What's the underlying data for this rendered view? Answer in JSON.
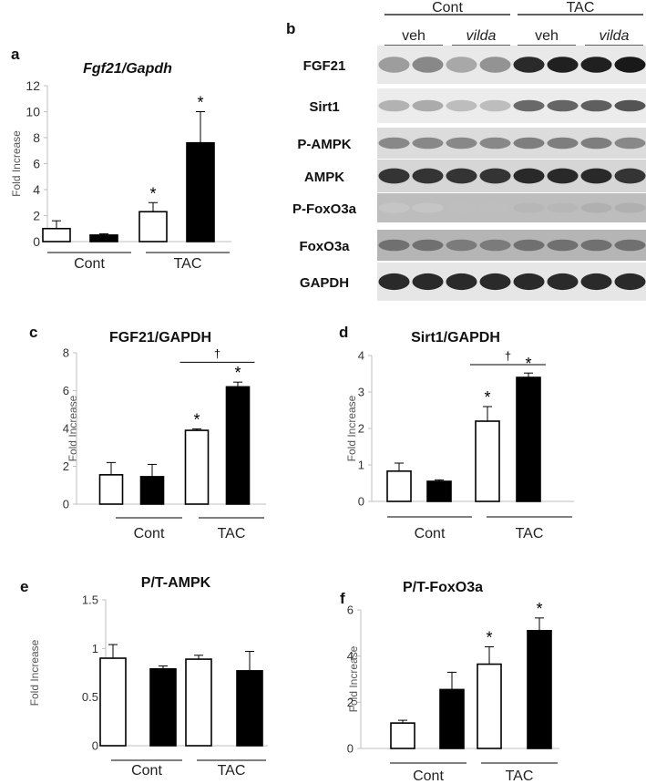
{
  "panels": {
    "a": {
      "letter": "a"
    },
    "b": {
      "letter": "b"
    },
    "c": {
      "letter": "c"
    },
    "d": {
      "letter": "d"
    },
    "e": {
      "letter": "e"
    },
    "f": {
      "letter": "f"
    }
  },
  "blot": {
    "groups": [
      "Cont",
      "TAC"
    ],
    "treatments": [
      "veh",
      "vilda",
      "veh",
      "vilda"
    ],
    "treatment_italic": [
      false,
      true,
      false,
      true
    ],
    "rows": [
      {
        "label": "FGF21",
        "intensities": [
          0.35,
          0.45,
          0.3,
          0.4,
          0.9,
          0.95,
          0.95,
          0.98
        ],
        "band_height": 1.25,
        "bg": "#e9e9e9"
      },
      {
        "label": "Sirt1",
        "intensities": [
          0.25,
          0.28,
          0.2,
          0.2,
          0.6,
          0.62,
          0.65,
          0.7
        ],
        "band_height": 0.9,
        "bg": "#ececec"
      },
      {
        "label": "P-AMPK",
        "intensities": [
          0.45,
          0.45,
          0.45,
          0.45,
          0.5,
          0.5,
          0.5,
          0.45
        ],
        "band_height": 0.9,
        "bg": "#dcdcdc"
      },
      {
        "label": "AMPK",
        "intensities": [
          0.85,
          0.85,
          0.85,
          0.85,
          0.9,
          0.9,
          0.9,
          0.85
        ],
        "band_height": 1.2,
        "bg": "#d6d6d6"
      },
      {
        "label": "P-FoxO3a",
        "intensities": [
          0.15,
          0.15,
          0.18,
          0.18,
          0.22,
          0.22,
          0.25,
          0.25
        ],
        "band_height": 0.8,
        "bg": "#bdbdbd"
      },
      {
        "label": "FoxO3a",
        "intensities": [
          0.55,
          0.55,
          0.5,
          0.5,
          0.55,
          0.55,
          0.55,
          0.55
        ],
        "band_height": 0.9,
        "bg": "#b5b5b5"
      },
      {
        "label": "GAPDH",
        "intensities": [
          0.9,
          0.9,
          0.9,
          0.9,
          0.9,
          0.9,
          0.9,
          0.9
        ],
        "band_height": 1.3,
        "bg": "#e6e6e6"
      }
    ]
  },
  "chart_data": [
    {
      "id": "a",
      "type": "bar",
      "title": "Fgf21/Gapdh",
      "title_style": "bold-italic",
      "ylabel": "Fold Increase",
      "ylim": [
        0,
        12
      ],
      "yticks": [
        0,
        2,
        4,
        6,
        8,
        10,
        12
      ],
      "groups": [
        "Cont",
        "TAC"
      ],
      "series": [
        {
          "fill": "#ffffff",
          "values": [
            1.0,
            2.3
          ],
          "errors": [
            0.6,
            0.7
          ]
        },
        {
          "fill": "#000000",
          "values": [
            0.5,
            7.6
          ],
          "errors": [
            0.1,
            2.4
          ]
        }
      ],
      "stars": [
        [
          false,
          true
        ],
        [
          false,
          true
        ]
      ],
      "dagger": null
    },
    {
      "id": "c",
      "type": "bar",
      "title": "FGF21/GAPDH",
      "title_style": "bold",
      "ylabel": "Fold Increase",
      "ylim": [
        0,
        8
      ],
      "yticks": [
        0,
        2,
        4,
        6,
        8
      ],
      "groups": [
        "Cont",
        "TAC"
      ],
      "series": [
        {
          "fill": "#ffffff",
          "values": [
            1.55,
            3.9
          ],
          "errors": [
            0.65,
            0.08
          ]
        },
        {
          "fill": "#000000",
          "values": [
            1.45,
            6.2
          ],
          "errors": [
            0.65,
            0.25
          ]
        }
      ],
      "stars": [
        [
          false,
          true
        ],
        [
          false,
          true
        ]
      ],
      "dagger": {
        "group": 1,
        "symbol": "†",
        "y": 7.5
      }
    },
    {
      "id": "d",
      "type": "bar",
      "title": "Sirt1/GAPDH",
      "title_style": "bold",
      "ylabel": "Fold Increase",
      "ylim": [
        0,
        4
      ],
      "yticks": [
        0,
        1,
        2,
        3,
        4
      ],
      "groups": [
        "Cont",
        "TAC"
      ],
      "series": [
        {
          "fill": "#ffffff",
          "values": [
            0.83,
            2.2
          ],
          "errors": [
            0.22,
            0.4
          ]
        },
        {
          "fill": "#000000",
          "values": [
            0.55,
            3.4
          ],
          "errors": [
            0.04,
            0.12
          ]
        }
      ],
      "stars": [
        [
          false,
          true
        ],
        [
          false,
          true
        ]
      ],
      "dagger": {
        "group": 1,
        "symbol": "†",
        "y": 3.75
      }
    },
    {
      "id": "e",
      "type": "bar",
      "title": "P/T-AMPK",
      "title_style": "bold",
      "ylabel": "Fold Increase",
      "ylim": [
        0,
        1.5
      ],
      "yticks": [
        0,
        0.5,
        1,
        1.5
      ],
      "groups": [
        "Cont",
        "TAC"
      ],
      "series": [
        {
          "fill": "#ffffff",
          "values": [
            0.9,
            0.89
          ],
          "errors": [
            0.14,
            0.04
          ]
        },
        {
          "fill": "#000000",
          "values": [
            0.79,
            0.77
          ],
          "errors": [
            0.03,
            0.2
          ]
        }
      ],
      "stars": [
        [
          false,
          false
        ],
        [
          false,
          false
        ]
      ],
      "dagger": null
    },
    {
      "id": "f",
      "type": "bar",
      "title": "P/T-FoxO3a",
      "title_style": "bold",
      "ylabel": "Fold Increase",
      "ylim": [
        0,
        6
      ],
      "yticks": [
        0,
        2,
        4,
        6
      ],
      "groups": [
        "Cont",
        "TAC"
      ],
      "series": [
        {
          "fill": "#ffffff",
          "values": [
            1.1,
            3.65
          ],
          "errors": [
            0.12,
            0.75
          ]
        },
        {
          "fill": "#000000",
          "values": [
            2.55,
            5.1
          ],
          "errors": [
            0.75,
            0.55
          ]
        }
      ],
      "stars": [
        [
          false,
          true
        ],
        [
          false,
          true
        ]
      ],
      "dagger": null
    }
  ]
}
